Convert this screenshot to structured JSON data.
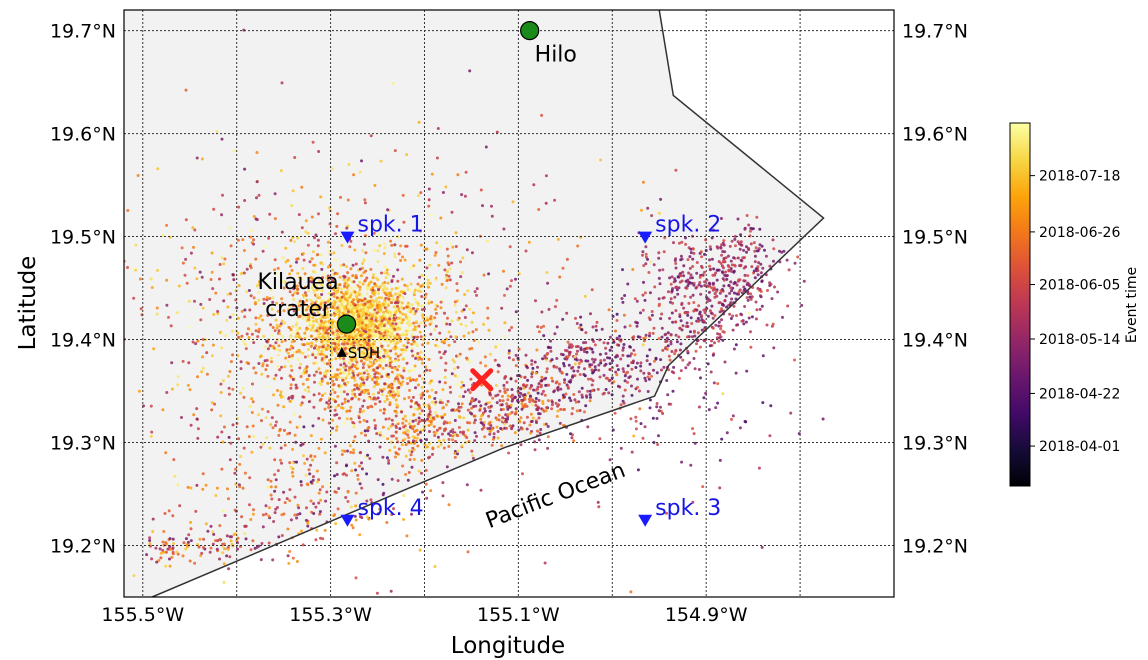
{
  "chart_data": {
    "type": "scatter",
    "title": "",
    "xlabel": "Longitude",
    "ylabel": "Latitude",
    "xlim": [
      -155.52,
      -154.7
    ],
    "ylim": [
      19.15,
      19.72
    ],
    "xticks": [
      -155.5,
      -155.3,
      -155.1,
      -154.9
    ],
    "xtick_labels": [
      "155.5°W",
      "155.3°W",
      "155.1°W",
      "154.9°W"
    ],
    "xgrid": [
      -155.5,
      -155.4,
      -155.3,
      -155.2,
      -155.1,
      -155.0,
      -154.9,
      -154.8
    ],
    "yticks": [
      19.2,
      19.3,
      19.4,
      19.5,
      19.6,
      19.7
    ],
    "ytick_labels": [
      "19.2°N",
      "19.3°N",
      "19.4°N",
      "19.5°N",
      "19.6°N",
      "19.7°N"
    ],
    "grid": true,
    "land_color": "#f2f2f2",
    "coastline": [
      [
        -154.95,
        19.72
      ],
      [
        -154.935,
        19.637
      ],
      [
        -154.775,
        19.518
      ],
      [
        -154.94,
        19.375
      ],
      [
        -154.955,
        19.345
      ],
      [
        -155.115,
        19.295
      ],
      [
        -155.49,
        19.15
      ]
    ],
    "places": [
      {
        "name": "Hilo",
        "lon": -155.088,
        "lat": 19.7,
        "color": "#1a8a1a"
      },
      {
        "name": "Kilauea crater",
        "lon": -155.283,
        "lat": 19.415,
        "color": "#1a8a1a"
      }
    ],
    "sdh": {
      "name": "SDH",
      "lon": -155.288,
      "lat": 19.388
    },
    "stations": [
      {
        "name": "spk. 1",
        "lon": -155.282,
        "lat": 19.499
      },
      {
        "name": "spk. 2",
        "lon": -154.965,
        "lat": 19.499
      },
      {
        "name": "spk. 3",
        "lon": -154.965,
        "lat": 19.224
      },
      {
        "name": "spk. 4",
        "lon": -155.282,
        "lat": 19.224
      }
    ],
    "event_marker": {
      "lon": -155.139,
      "lat": 19.361,
      "color": "#ff2020"
    },
    "sea_label": "Pacific Ocean",
    "earthquake_clusters": [
      {
        "lon": -155.272,
        "lat": 19.415,
        "sd_lon": 0.03,
        "sd_lat": 0.02,
        "count": 1300,
        "time_range": [
          0.8,
          1.0
        ]
      },
      {
        "lon": -155.27,
        "lat": 19.412,
        "sd_lon": 0.065,
        "sd_lat": 0.045,
        "count": 900,
        "time_range": [
          0.5,
          1.0
        ]
      },
      {
        "lon": -155.25,
        "lat": 19.352,
        "sd_lon": 0.03,
        "sd_lat": 0.012,
        "count": 150,
        "time_range": [
          0.4,
          0.95
        ]
      },
      {
        "lon": -155.215,
        "lat": 19.31,
        "sd_lon": 0.015,
        "sd_lat": 0.015,
        "count": 70,
        "time_range": [
          0.5,
          0.9
        ]
      },
      {
        "lon": -155.17,
        "lat": 19.32,
        "sd_lon": 0.045,
        "sd_lat": 0.015,
        "count": 220,
        "time_range": [
          0.3,
          0.95
        ]
      },
      {
        "lon": -155.11,
        "lat": 19.334,
        "sd_lon": 0.03,
        "sd_lat": 0.015,
        "count": 160,
        "time_range": [
          0.3,
          0.8
        ]
      },
      {
        "lon": -155.06,
        "lat": 19.365,
        "sd_lon": 0.03,
        "sd_lat": 0.025,
        "count": 180,
        "time_range": [
          0.2,
          0.65
        ]
      },
      {
        "lon": -154.99,
        "lat": 19.378,
        "sd_lon": 0.035,
        "sd_lat": 0.025,
        "count": 220,
        "time_range": [
          0.2,
          0.7
        ]
      },
      {
        "lon": -154.905,
        "lat": 19.445,
        "sd_lon": 0.035,
        "sd_lat": 0.03,
        "count": 430,
        "time_range": [
          0.25,
          0.6
        ]
      },
      {
        "lon": -154.855,
        "lat": 19.47,
        "sd_lon": 0.02,
        "sd_lat": 0.02,
        "count": 110,
        "time_range": [
          0.25,
          0.6
        ]
      },
      {
        "lon": -154.95,
        "lat": 19.33,
        "sd_lon": 0.06,
        "sd_lat": 0.035,
        "count": 90,
        "time_range": [
          0.2,
          0.6
        ]
      },
      {
        "lon": -155.3,
        "lat": 19.26,
        "sd_lon": 0.05,
        "sd_lat": 0.03,
        "count": 130,
        "time_range": [
          0.2,
          0.8
        ]
      },
      {
        "lon": -155.47,
        "lat": 19.196,
        "sd_lon": 0.015,
        "sd_lat": 0.008,
        "count": 60,
        "time_range": [
          0.3,
          0.9
        ]
      },
      {
        "lon": -155.41,
        "lat": 19.202,
        "sd_lon": 0.015,
        "sd_lat": 0.008,
        "count": 40,
        "time_range": [
          0.3,
          0.9
        ]
      },
      {
        "lon": -155.35,
        "lat": 19.23,
        "sd_lon": 0.03,
        "sd_lat": 0.02,
        "count": 60,
        "time_range": [
          0.3,
          0.8
        ]
      },
      {
        "lon": -155.33,
        "lat": 19.36,
        "sd_lon": 0.11,
        "sd_lat": 0.09,
        "count": 520,
        "time_range": [
          0.4,
          1.0
        ]
      },
      {
        "lon": -155.25,
        "lat": 19.44,
        "sd_lon": 0.16,
        "sd_lat": 0.08,
        "count": 320,
        "time_range": [
          0.3,
          1.0
        ]
      }
    ],
    "colorbar": {
      "label": "Event time",
      "colormap": "inferno",
      "ticks": [
        {
          "label": "2018-04-01",
          "frac": 0.11
        },
        {
          "label": "2018-04-22",
          "frac": 0.255
        },
        {
          "label": "2018-05-14",
          "frac": 0.405
        },
        {
          "label": "2018-06-05",
          "frac": 0.555
        },
        {
          "label": "2018-06-26",
          "frac": 0.7
        },
        {
          "label": "2018-07-18",
          "frac": 0.855
        }
      ]
    }
  }
}
